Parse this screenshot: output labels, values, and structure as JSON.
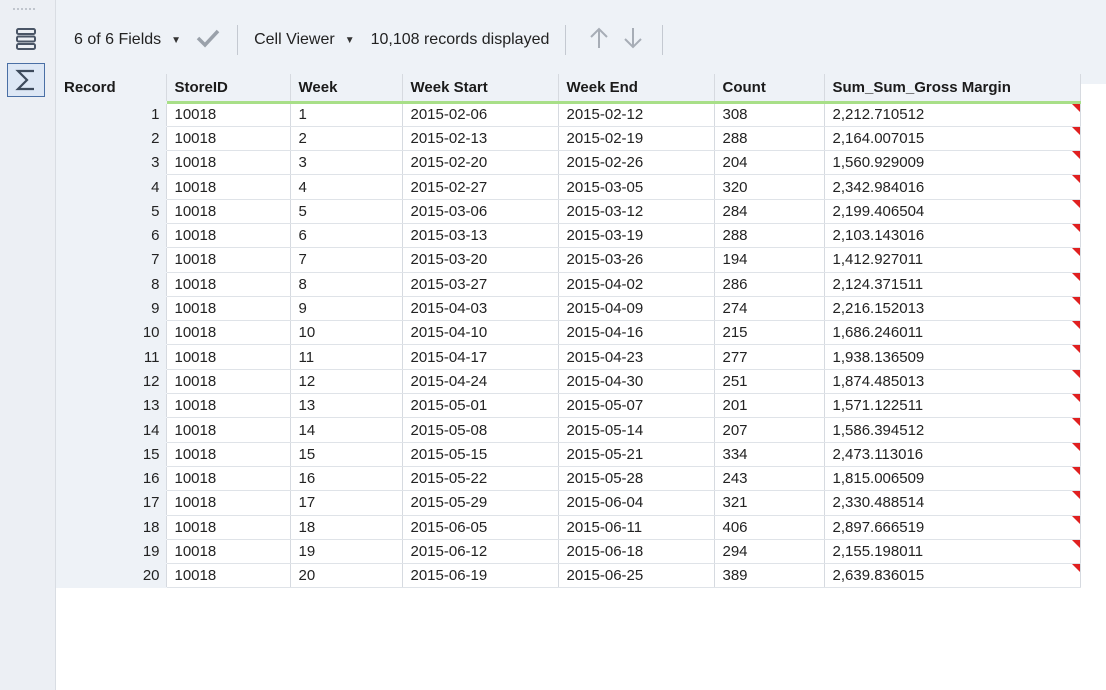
{
  "toolbar": {
    "fields_label": "6 of 6 Fields",
    "viewer_label": "Cell Viewer",
    "records_label": "10,108 records displayed"
  },
  "colors": {
    "header_underline": "#a8df88",
    "flag": "#e02020",
    "chrome_bg": "#eef2f7"
  },
  "icons": [
    "grip-icon",
    "list-view-icon",
    "sum-icon",
    "checkmark-icon",
    "caret-down-icon",
    "arrow-up-icon",
    "arrow-down-icon",
    "truncation-flag-icon"
  ],
  "table": {
    "columns": [
      "Record",
      "StoreID",
      "Week",
      "Week Start",
      "Week End",
      "Count",
      "Sum_Sum_Gross Margin"
    ],
    "rows": [
      [
        "1",
        "10018",
        "1",
        "2015-02-06",
        "2015-02-12",
        "308",
        "2,212.710512"
      ],
      [
        "2",
        "10018",
        "2",
        "2015-02-13",
        "2015-02-19",
        "288",
        "2,164.007015"
      ],
      [
        "3",
        "10018",
        "3",
        "2015-02-20",
        "2015-02-26",
        "204",
        "1,560.929009"
      ],
      [
        "4",
        "10018",
        "4",
        "2015-02-27",
        "2015-03-05",
        "320",
        "2,342.984016"
      ],
      [
        "5",
        "10018",
        "5",
        "2015-03-06",
        "2015-03-12",
        "284",
        "2,199.406504"
      ],
      [
        "6",
        "10018",
        "6",
        "2015-03-13",
        "2015-03-19",
        "288",
        "2,103.143016"
      ],
      [
        "7",
        "10018",
        "7",
        "2015-03-20",
        "2015-03-26",
        "194",
        "1,412.927011"
      ],
      [
        "8",
        "10018",
        "8",
        "2015-03-27",
        "2015-04-02",
        "286",
        "2,124.371511"
      ],
      [
        "9",
        "10018",
        "9",
        "2015-04-03",
        "2015-04-09",
        "274",
        "2,216.152013"
      ],
      [
        "10",
        "10018",
        "10",
        "2015-04-10",
        "2015-04-16",
        "215",
        "1,686.246011"
      ],
      [
        "11",
        "10018",
        "11",
        "2015-04-17",
        "2015-04-23",
        "277",
        "1,938.136509"
      ],
      [
        "12",
        "10018",
        "12",
        "2015-04-24",
        "2015-04-30",
        "251",
        "1,874.485013"
      ],
      [
        "13",
        "10018",
        "13",
        "2015-05-01",
        "2015-05-07",
        "201",
        "1,571.122511"
      ],
      [
        "14",
        "10018",
        "14",
        "2015-05-08",
        "2015-05-14",
        "207",
        "1,586.394512"
      ],
      [
        "15",
        "10018",
        "15",
        "2015-05-15",
        "2015-05-21",
        "334",
        "2,473.113016"
      ],
      [
        "16",
        "10018",
        "16",
        "2015-05-22",
        "2015-05-28",
        "243",
        "1,815.006509"
      ],
      [
        "17",
        "10018",
        "17",
        "2015-05-29",
        "2015-06-04",
        "321",
        "2,330.488514"
      ],
      [
        "18",
        "10018",
        "18",
        "2015-06-05",
        "2015-06-11",
        "406",
        "2,897.666519"
      ],
      [
        "19",
        "10018",
        "19",
        "2015-06-12",
        "2015-06-18",
        "294",
        "2,155.198011"
      ],
      [
        "20",
        "10018",
        "20",
        "2015-06-19",
        "2015-06-25",
        "389",
        "2,639.836015"
      ]
    ]
  }
}
